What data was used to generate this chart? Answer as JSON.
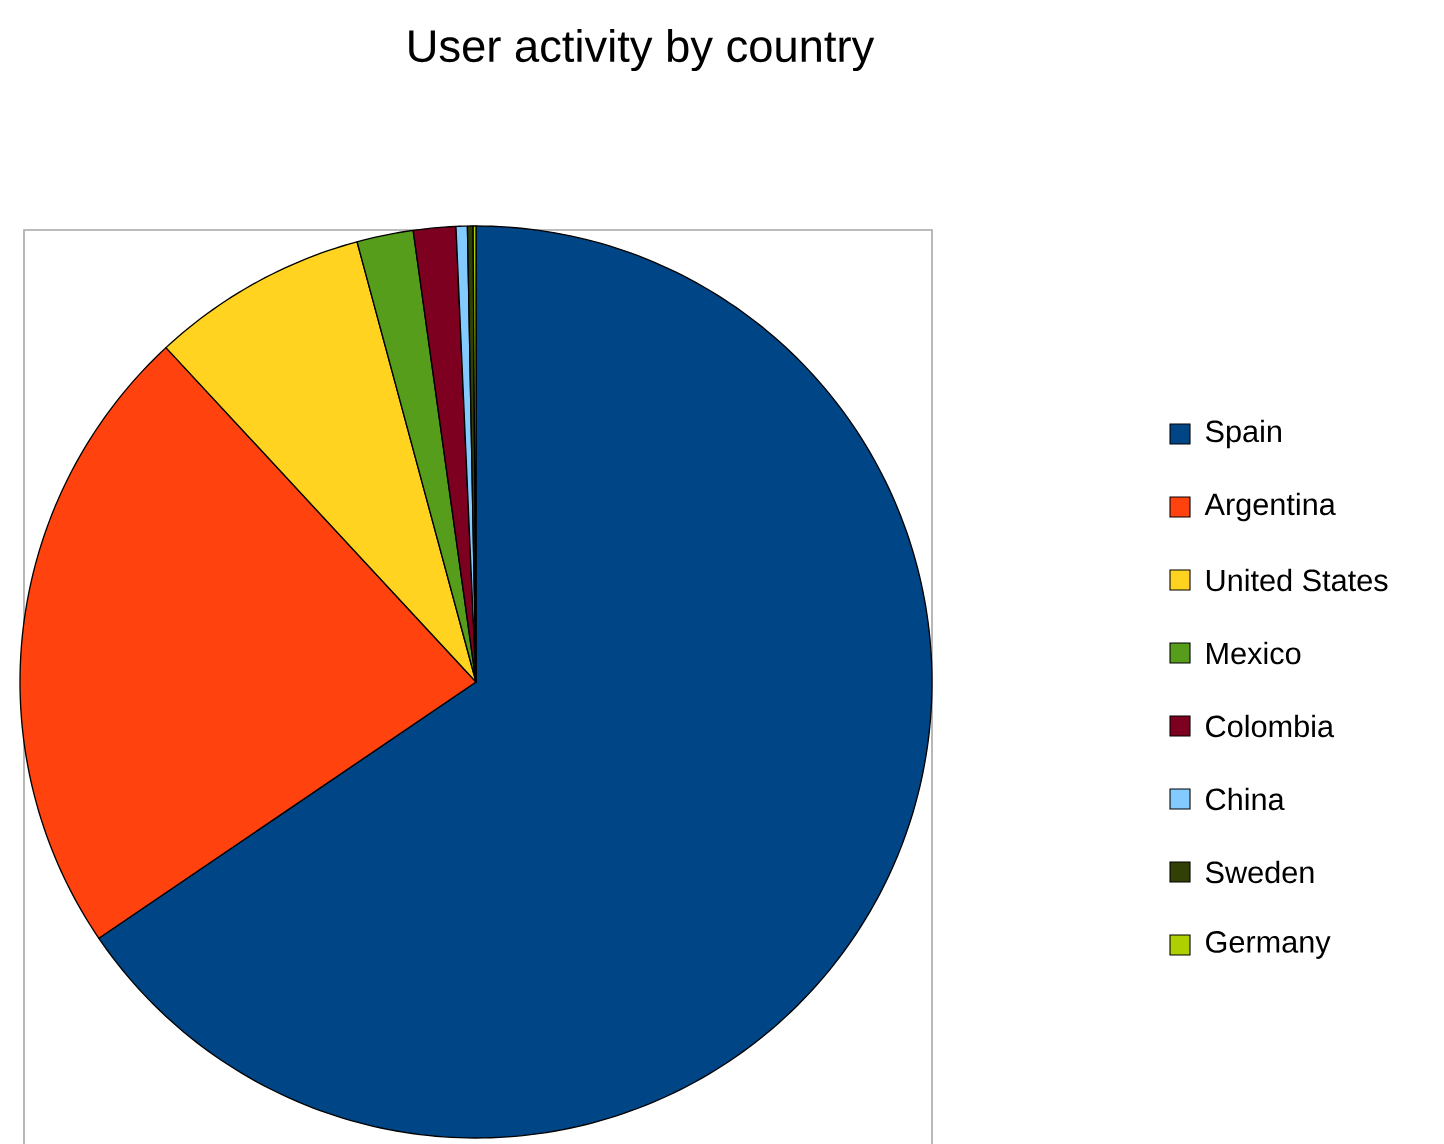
{
  "chart_data": {
    "type": "pie",
    "title": "User activity by country",
    "categories": [
      "Spain",
      "Argentina",
      "United States",
      "Mexico",
      "Colombia",
      "China",
      "Sweden",
      "Germany"
    ],
    "values": [
      65.5,
      22.6,
      7.7,
      2.0,
      1.5,
      0.4,
      0.2,
      0.1
    ],
    "colors": [
      "#004586",
      "#ff420e",
      "#ffd320",
      "#579d1c",
      "#7e0021",
      "#83caff",
      "#314004",
      "#aecf00"
    ],
    "legend": "right"
  }
}
